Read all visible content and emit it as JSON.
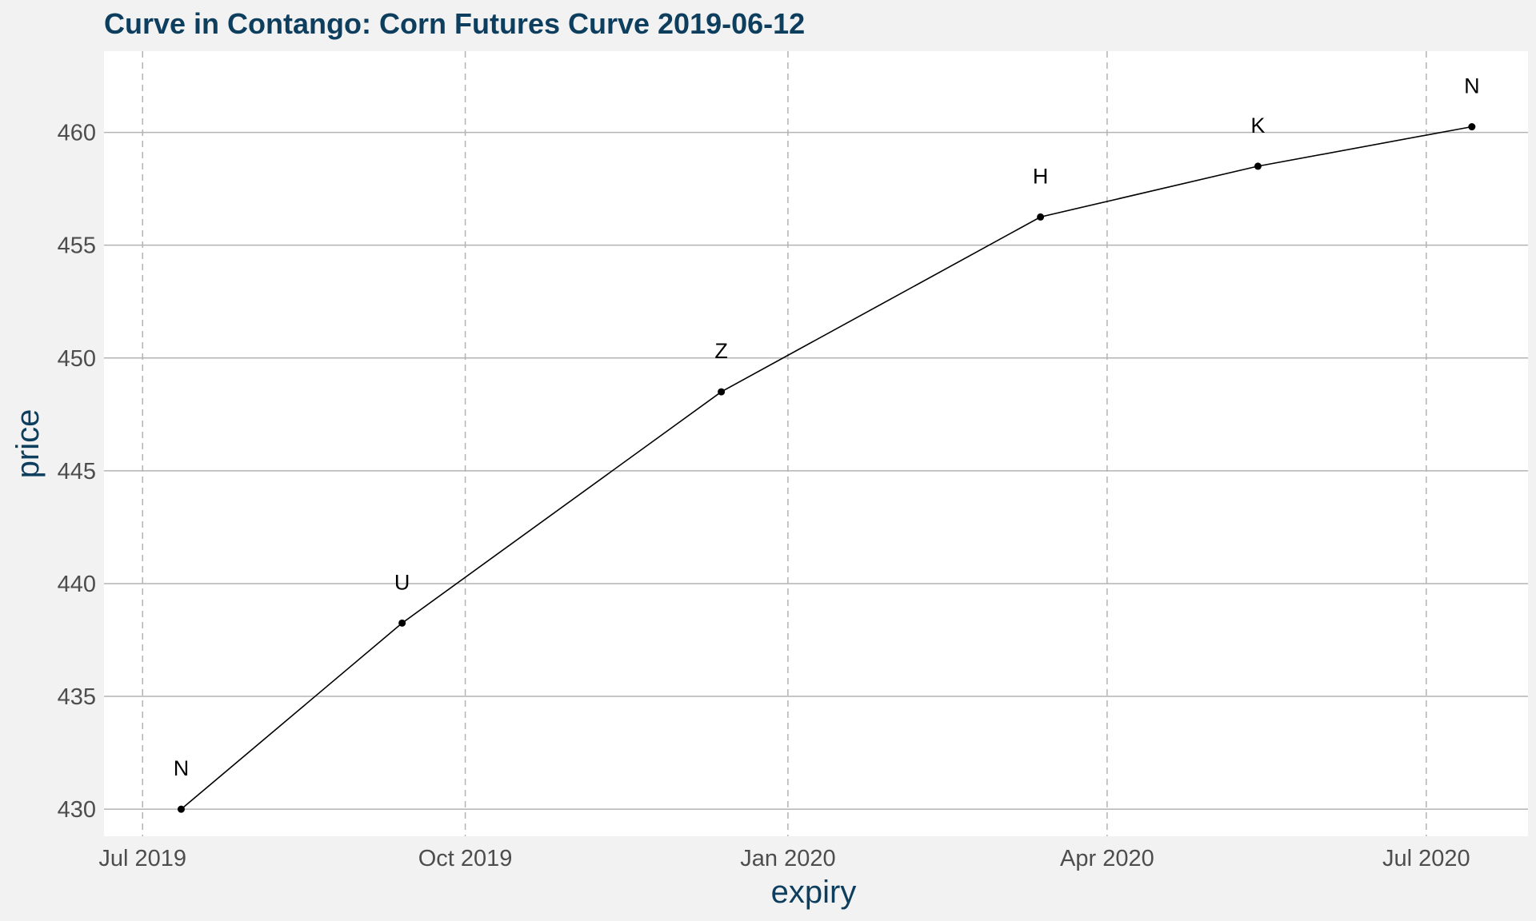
{
  "chart_data": {
    "type": "line",
    "title": "Curve in Contango: Corn Futures Curve 2019-06-12",
    "xlabel": "expiry",
    "ylabel": "price",
    "x_scale": "date",
    "xlim": [
      "2019-06-20",
      "2020-07-30"
    ],
    "ylim": [
      428.8,
      463.6
    ],
    "x_ticks": [
      {
        "date": "2019-07-01",
        "label": "Jul 2019"
      },
      {
        "date": "2019-10-01",
        "label": "Oct 2019"
      },
      {
        "date": "2020-01-01",
        "label": "Jan 2020"
      },
      {
        "date": "2020-04-01",
        "label": "Apr 2020"
      },
      {
        "date": "2020-07-01",
        "label": "Jul 2020"
      }
    ],
    "y_ticks": [
      430,
      435,
      440,
      445,
      450,
      455,
      460
    ],
    "grid": true,
    "legend": "none",
    "series": [
      {
        "points": [
          {
            "x": "2019-07-12",
            "y": 430.0,
            "label": "N"
          },
          {
            "x": "2019-09-13",
            "y": 438.25,
            "label": "U"
          },
          {
            "x": "2019-12-13",
            "y": 448.5,
            "label": "Z"
          },
          {
            "x": "2020-03-13",
            "y": 456.25,
            "label": "H"
          },
          {
            "x": "2020-05-14",
            "y": 458.5,
            "label": "K"
          },
          {
            "x": "2020-07-14",
            "y": 460.25,
            "label": "N"
          }
        ]
      }
    ],
    "colors": {
      "background": "#f2f2f2",
      "panel": "#ffffff",
      "line": "#000000",
      "grid": "#b3b3b3",
      "title": "#0e3e5e"
    }
  }
}
